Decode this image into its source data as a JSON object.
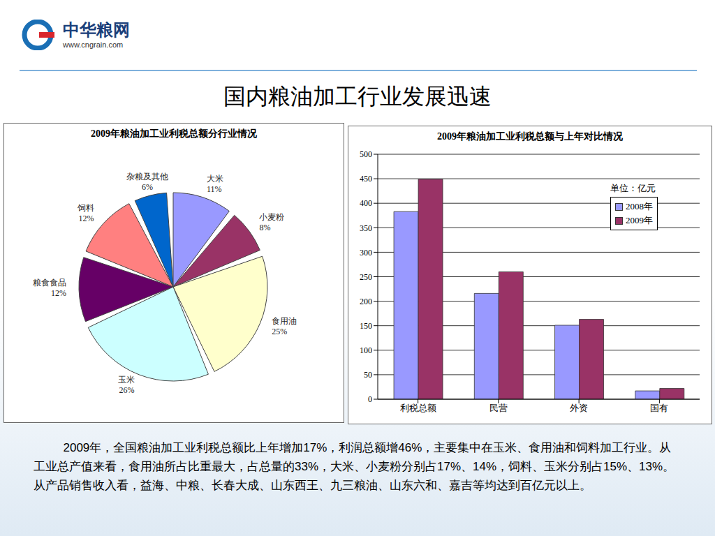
{
  "header": {
    "logo": "中华粮网",
    "url": "www.cngrain.com"
  },
  "title": "国内粮油加工行业发展迅速",
  "chart_data": [
    {
      "type": "pie",
      "title": "2009年粮油加工业利税总额分行业情况",
      "categories": [
        "大米",
        "小麦粉",
        "食用油",
        "玉米",
        "粮食食品",
        "饲料",
        "杂粮及其他"
      ],
      "values": [
        11,
        8,
        25,
        26,
        12,
        12,
        6
      ],
      "value_labels": [
        "11%",
        "8%",
        "25%",
        "26%",
        "12%",
        "12%",
        "6%"
      ],
      "colors": [
        "#9999ff",
        "#993366",
        "#ffffcc",
        "#ccffff",
        "#660066",
        "#ff8080",
        "#0066cc"
      ]
    },
    {
      "type": "bar",
      "title": "2009年粮油加工业利税总额与上年对比情况",
      "annotations": [
        "单位：亿元"
      ],
      "categories": [
        "利税总额",
        "民营",
        "外资",
        "国有"
      ],
      "series": [
        {
          "name": "2008年",
          "color": "#9999ff",
          "values": [
            383,
            216,
            151,
            17
          ]
        },
        {
          "name": "2009年",
          "color": "#993366",
          "values": [
            449,
            260,
            163,
            22
          ]
        }
      ],
      "ylim": [
        0,
        500
      ],
      "yticks": [
        0,
        50,
        100,
        150,
        200,
        250,
        300,
        350,
        400,
        450,
        500
      ],
      "grid": true,
      "legend": "upper right"
    }
  ],
  "text": "2009年，全国粮油加工业利税总额比上年增加17%，利润总额增46%，主要集中在玉米、食用油和饲料加工行业。从工业总产值来看，食用油所占比重最大，占总量的33%，大米、小麦粉分别占17%、14%，饲料、玉米分别占15%、13%。从产品销售收入看，益海、中粮、长春大成、山东西王、九三粮油、山东六和、嘉吉等均达到百亿元以上。"
}
